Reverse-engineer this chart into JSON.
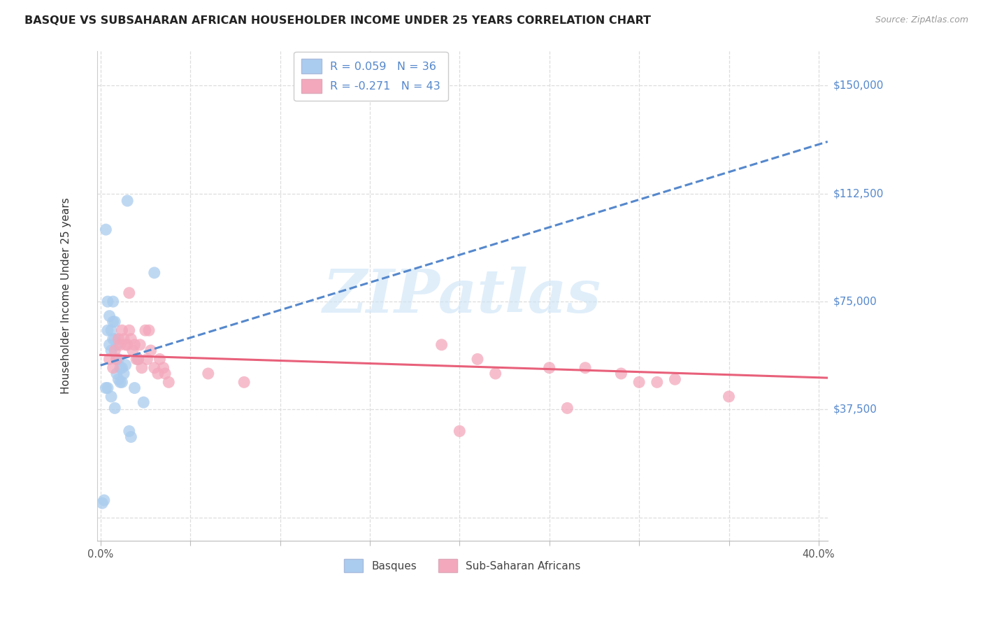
{
  "title": "BASQUE VS SUBSAHARAN AFRICAN HOUSEHOLDER INCOME UNDER 25 YEARS CORRELATION CHART",
  "source": "Source: ZipAtlas.com",
  "ylabel": "Householder Income Under 25 years",
  "xlim": [
    -0.002,
    0.405
  ],
  "ylim": [
    -8000,
    162000
  ],
  "ytick_vals": [
    0,
    37500,
    75000,
    112500,
    150000
  ],
  "ytick_labels": [
    "",
    "$37,500",
    "$75,000",
    "$112,500",
    "$150,000"
  ],
  "xtick_vals": [
    0.0,
    0.05,
    0.1,
    0.15,
    0.2,
    0.25,
    0.3,
    0.35,
    0.4
  ],
  "grid_color": "#dddddd",
  "bg_color": "#ffffff",
  "blue_color": "#aaccee",
  "pink_color": "#f4a8bc",
  "blue_line_color": "#5588cc",
  "pink_line_color": "#e8607a",
  "dollar_color": "#5588cc",
  "title_color": "#222222",
  "source_color": "#999999",
  "watermark_color": "#cce4f7",
  "watermark_text": "ZIPatlas",
  "legend_R_blue": "R = 0.059",
  "legend_N_blue": "N = 36",
  "legend_R_pink": "R = -0.271",
  "legend_N_pink": "N = 43",
  "basques_x": [
    0.001,
    0.002,
    0.003,
    0.004,
    0.004,
    0.005,
    0.005,
    0.006,
    0.006,
    0.007,
    0.007,
    0.007,
    0.008,
    0.008,
    0.009,
    0.009,
    0.009,
    0.01,
    0.01,
    0.011,
    0.011,
    0.012,
    0.012,
    0.013,
    0.014,
    0.015,
    0.016,
    0.017,
    0.019,
    0.021,
    0.024,
    0.03,
    0.004,
    0.006,
    0.008,
    0.003
  ],
  "basques_y": [
    5000,
    6000,
    100000,
    75000,
    65000,
    70000,
    60000,
    65000,
    58000,
    75000,
    68000,
    62000,
    68000,
    62000,
    60000,
    55000,
    50000,
    55000,
    48000,
    52000,
    47000,
    52000,
    47000,
    50000,
    53000,
    110000,
    30000,
    28000,
    45000,
    55000,
    40000,
    85000,
    45000,
    42000,
    38000,
    45000
  ],
  "ssa_x": [
    0.005,
    0.007,
    0.008,
    0.009,
    0.01,
    0.011,
    0.012,
    0.013,
    0.014,
    0.015,
    0.016,
    0.017,
    0.018,
    0.019,
    0.02,
    0.021,
    0.022,
    0.023,
    0.025,
    0.026,
    0.027,
    0.028,
    0.03,
    0.032,
    0.033,
    0.035,
    0.036,
    0.038,
    0.19,
    0.21,
    0.22,
    0.25,
    0.26,
    0.27,
    0.29,
    0.3,
    0.31,
    0.32,
    0.35,
    0.016,
    0.06,
    0.08,
    0.2
  ],
  "ssa_y": [
    55000,
    52000,
    58000,
    55000,
    62000,
    60000,
    65000,
    62000,
    60000,
    60000,
    65000,
    62000,
    58000,
    60000,
    55000,
    55000,
    60000,
    52000,
    65000,
    55000,
    65000,
    58000,
    52000,
    50000,
    55000,
    52000,
    50000,
    47000,
    60000,
    55000,
    50000,
    52000,
    38000,
    52000,
    50000,
    47000,
    47000,
    48000,
    42000,
    78000,
    50000,
    47000,
    30000
  ]
}
